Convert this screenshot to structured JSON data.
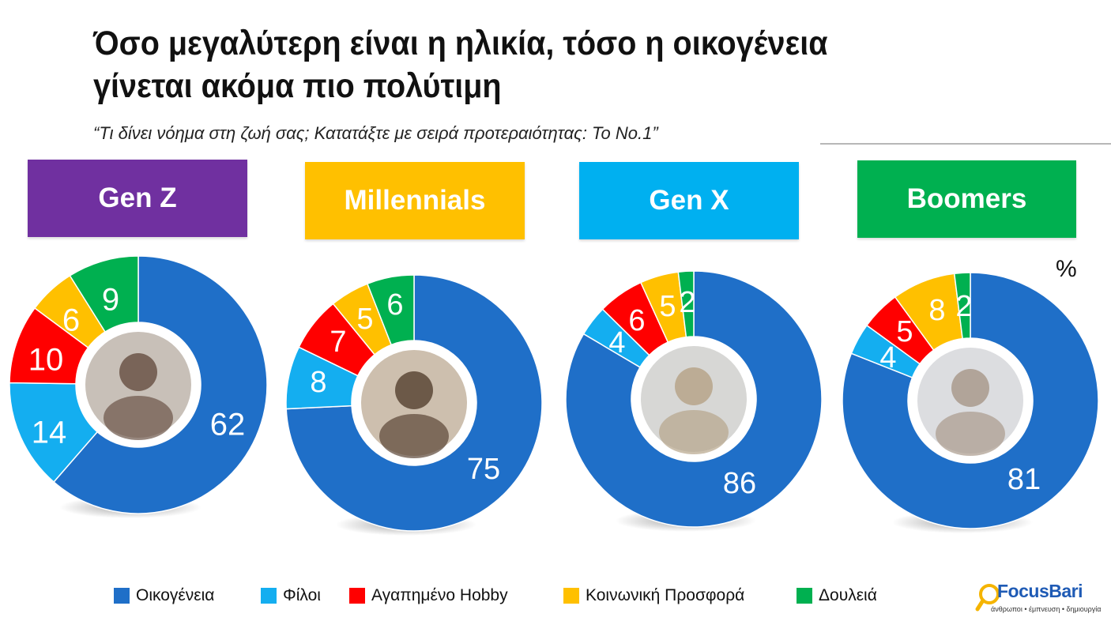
{
  "title_lines": [
    "Όσο μεγαλύτερη είναι η ηλικία, τόσο η οικογένεια",
    "γίνεται ακόμα πιο πολύτιμη"
  ],
  "subtitle": "“Τι δίνει νόημα στη ζωή σας; Κατατάξτε με σειρά προτεραιότητας: Το No.1”",
  "unit_label": "%",
  "generations": [
    {
      "label": "Gen Z",
      "color": "#7030a0"
    },
    {
      "label": "Millennials",
      "color": "#ffc000"
    },
    {
      "label": "Gen X",
      "color": "#00b0f0"
    },
    {
      "label": "Boomers",
      "color": "#00b050"
    }
  ],
  "legend": [
    {
      "label": "Οικογένεια",
      "color": "#1f6fc8"
    },
    {
      "label": "Φίλοι",
      "color": "#14aef0"
    },
    {
      "label": "Αγαπημένο Hobby",
      "color": "#ff0000"
    },
    {
      "label": "Κοινωνική Προσφορά",
      "color": "#ffc000"
    },
    {
      "label": "Δουλειά",
      "color": "#00b050"
    }
  ],
  "logo": {
    "name": "FocusBari",
    "tagline": "άνθρωποι • έμπνευση • δημιουργία"
  },
  "chart_data": [
    {
      "type": "pie",
      "name": "Gen Z",
      "categories": [
        "Οικογένεια",
        "Φίλοι",
        "Αγαπημένο Hobby",
        "Κοινωνική Προσφορά",
        "Δουλειά"
      ],
      "values": [
        62,
        14,
        10,
        6,
        9
      ]
    },
    {
      "type": "pie",
      "name": "Millennials",
      "categories": [
        "Οικογένεια",
        "Φίλοι",
        "Αγαπημένο Hobby",
        "Κοινωνική Προσφορά",
        "Δουλειά"
      ],
      "values": [
        75,
        8,
        7,
        5,
        6
      ]
    },
    {
      "type": "pie",
      "name": "Gen X",
      "categories": [
        "Οικογένεια",
        "Φίλοι",
        "Αγαπημένο Hobby",
        "Κοινωνική Προσφορά",
        "Δουλειά"
      ],
      "values": [
        86,
        4,
        6,
        5,
        2
      ]
    },
    {
      "type": "pie",
      "name": "Boomers",
      "categories": [
        "Οικογένεια",
        "Φίλοι",
        "Αγαπημένο Hobby",
        "Κοινωνική Προσφορά",
        "Δουλειά"
      ],
      "values": [
        81,
        4,
        5,
        8,
        2
      ]
    }
  ]
}
